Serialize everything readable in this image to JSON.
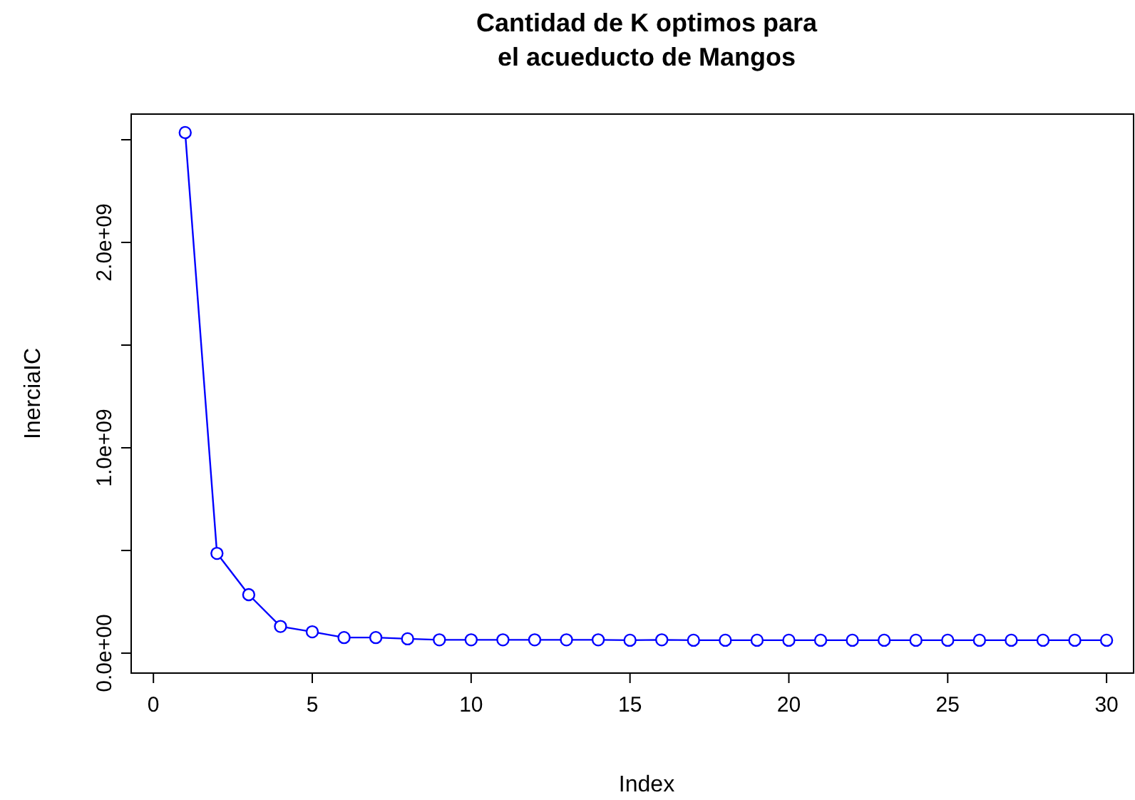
{
  "chart_data": {
    "type": "line",
    "title": "Cantidad de K optimos para\nel acueducto de Mangos",
    "xlabel": "Index",
    "ylabel": "InerciaIC",
    "x": [
      1,
      2,
      3,
      4,
      5,
      6,
      7,
      8,
      9,
      10,
      11,
      12,
      13,
      14,
      15,
      16,
      17,
      18,
      19,
      20,
      21,
      22,
      23,
      24,
      25,
      26,
      27,
      28,
      29,
      30
    ],
    "series": [
      {
        "color": "#0000ff",
        "values": [
          2535000000,
          486000000,
          285000000,
          130000000,
          104000000,
          76000000,
          76000000,
          70000000,
          65000000,
          65000000,
          65000000,
          65000000,
          65000000,
          65000000,
          63000000,
          65000000,
          63000000,
          63000000,
          63000000,
          63000000,
          63000000,
          63000000,
          63000000,
          63000000,
          63000000,
          63000000,
          63000000,
          63000000,
          63000000,
          63000000
        ]
      }
    ],
    "xlim": [
      -0.7,
      30.85
    ],
    "ylim": [
      -97000000,
      2625000000
    ],
    "xticks": [
      0,
      5,
      10,
      15,
      20,
      25,
      30
    ],
    "yticks": [
      {
        "value": 0,
        "label": "0.0e+00"
      },
      {
        "value": 500000000,
        "label": null
      },
      {
        "value": 1000000000,
        "label": "1.0e+09"
      },
      {
        "value": 1500000000,
        "label": null
      },
      {
        "value": 2000000000,
        "label": "2.0e+09"
      },
      {
        "value": 2500000000,
        "label": null
      }
    ],
    "marker": "circle",
    "line_style": "solid"
  }
}
